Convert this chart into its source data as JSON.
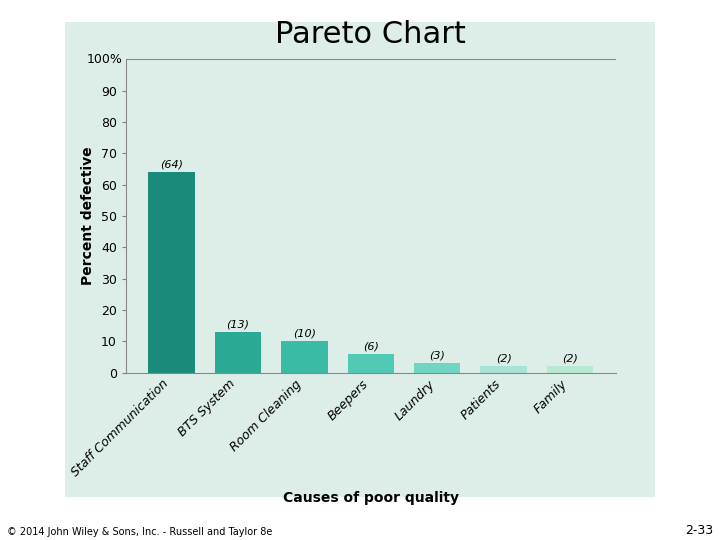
{
  "title": "Pareto Chart",
  "xlabel": "Causes of poor quality",
  "ylabel": "Percent defective",
  "categories": [
    "Staff Communication",
    "BTS System",
    "Room Cleaning",
    "Beepers",
    "Laundry",
    "Patients",
    "Family"
  ],
  "values": [
    64,
    13,
    10,
    6,
    3,
    2,
    2
  ],
  "bar_colors": [
    "#1a8a7a",
    "#2aaa95",
    "#3abba6",
    "#50c9b5",
    "#70d5c2",
    "#a8e2d8",
    "#b8ead2"
  ],
  "ylim": [
    0,
    100
  ],
  "yticks": [
    0,
    10,
    20,
    30,
    40,
    50,
    60,
    70,
    80,
    90
  ],
  "y100_label": "100%",
  "bg_color": "#ddeee8",
  "fig_bg_color": "#ffffff",
  "chart_bg_color": "#ddeee8",
  "title_fontsize": 22,
  "axis_label_fontsize": 10,
  "tick_fontsize": 9,
  "annotation_fontsize": 8,
  "footer_text": "© 2014 John Wiley & Sons, Inc. - Russell and Taylor 8e",
  "footer_right": "2-33"
}
